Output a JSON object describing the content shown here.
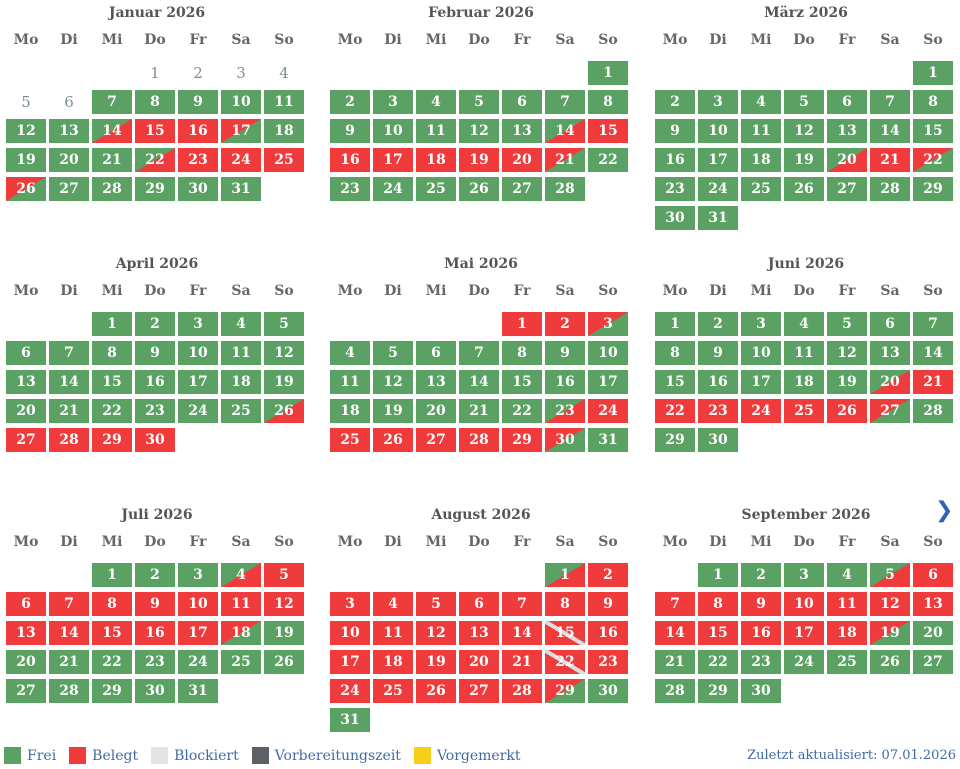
{
  "weekdays": [
    "Mo",
    "Di",
    "Mi",
    "Do",
    "Fr",
    "Sa",
    "So"
  ],
  "months": [
    {
      "title": "Januar 2026",
      "offset": 3,
      "status": [
        "n",
        "n",
        "n",
        "n",
        "n",
        "n",
        "g",
        "g",
        "g",
        "g",
        "g",
        "g",
        "g",
        "gr",
        "r",
        "r",
        "rg",
        "g",
        "g",
        "g",
        "g",
        "gr",
        "r",
        "r",
        "r",
        "rg",
        "g",
        "g",
        "g",
        "g",
        "g"
      ]
    },
    {
      "title": "Februar 2026",
      "offset": 6,
      "status": [
        "g",
        "g",
        "g",
        "g",
        "g",
        "g",
        "g",
        "g",
        "g",
        "g",
        "g",
        "g",
        "g",
        "gr",
        "r",
        "r",
        "r",
        "r",
        "r",
        "r",
        "rg",
        "g",
        "g",
        "g",
        "g",
        "g",
        "g",
        "g"
      ]
    },
    {
      "title": "März 2026",
      "offset": 6,
      "status": [
        "g",
        "g",
        "g",
        "g",
        "g",
        "g",
        "g",
        "g",
        "g",
        "g",
        "g",
        "g",
        "g",
        "g",
        "g",
        "g",
        "g",
        "g",
        "g",
        "gr",
        "r",
        "rg",
        "g",
        "g",
        "g",
        "g",
        "g",
        "g",
        "g",
        "g",
        "g"
      ]
    },
    {
      "title": "April 2026",
      "offset": 2,
      "status": [
        "g",
        "g",
        "g",
        "g",
        "g",
        "g",
        "g",
        "g",
        "g",
        "g",
        "g",
        "g",
        "g",
        "g",
        "g",
        "g",
        "g",
        "g",
        "g",
        "g",
        "g",
        "g",
        "g",
        "g",
        "g",
        "gr",
        "r",
        "r",
        "r",
        "r"
      ]
    },
    {
      "title": "Mai 2026",
      "offset": 4,
      "status": [
        "r",
        "r",
        "rg",
        "g",
        "g",
        "g",
        "g",
        "g",
        "g",
        "g",
        "g",
        "g",
        "g",
        "g",
        "g",
        "g",
        "g",
        "g",
        "g",
        "g",
        "g",
        "g",
        "gr",
        "r",
        "r",
        "r",
        "r",
        "r",
        "r",
        "rg",
        "g"
      ]
    },
    {
      "title": "Juni 2026",
      "offset": 0,
      "status": [
        "g",
        "g",
        "g",
        "g",
        "g",
        "g",
        "g",
        "g",
        "g",
        "g",
        "g",
        "g",
        "g",
        "g",
        "g",
        "g",
        "g",
        "g",
        "g",
        "gr",
        "r",
        "r",
        "r",
        "r",
        "r",
        "r",
        "rg",
        "g",
        "g",
        "g"
      ]
    },
    {
      "title": "Juli 2026",
      "offset": 2,
      "status": [
        "g",
        "g",
        "g",
        "gr",
        "r",
        "r",
        "r",
        "r",
        "r",
        "r",
        "r",
        "r",
        "r",
        "r",
        "r",
        "r",
        "r",
        "rg",
        "g",
        "g",
        "g",
        "g",
        "g",
        "g",
        "g",
        "g",
        "g",
        "g",
        "g",
        "g",
        "g"
      ]
    },
    {
      "title": "August 2026",
      "offset": 5,
      "status": [
        "gr",
        "r",
        "r",
        "r",
        "r",
        "r",
        "r",
        "r",
        "r",
        "r",
        "r",
        "r",
        "r",
        "r",
        "rr",
        "r",
        "r",
        "r",
        "r",
        "r",
        "r",
        "rr",
        "r",
        "r",
        "r",
        "r",
        "r",
        "r",
        "rg",
        "g",
        "g"
      ]
    },
    {
      "title": "September 2026",
      "offset": 1,
      "status": [
        "g",
        "g",
        "g",
        "g",
        "gr",
        "r",
        "r",
        "r",
        "r",
        "r",
        "r",
        "r",
        "r",
        "r",
        "r",
        "r",
        "r",
        "r",
        "rg",
        "g",
        "g",
        "g",
        "g",
        "g",
        "g",
        "g",
        "g",
        "g",
        "g",
        "g"
      ]
    }
  ],
  "next_icon": "chevron-right-icon",
  "legend": [
    {
      "label": "Frei",
      "color": "#5aa163"
    },
    {
      "label": "Belegt",
      "color": "#ef3b3b"
    },
    {
      "label": "Blockiert",
      "color": "#e3e3e3"
    },
    {
      "label": "Vorbereitungszeit",
      "color": "#5b6166"
    },
    {
      "label": "Vorgemerkt",
      "color": "#f5cf1a"
    }
  ],
  "updated": "Zuletzt aktualisiert: 07.01.2026"
}
